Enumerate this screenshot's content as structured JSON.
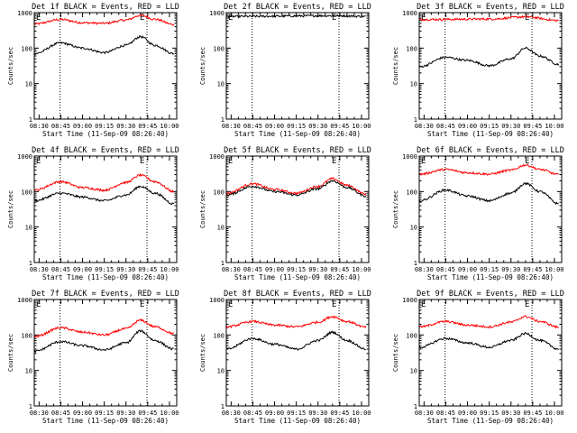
{
  "chart_data": [
    {
      "type": "line",
      "title": "Det 1f BLACK = Events, RED = LLD",
      "xlabel": "Start Time (11-Sep-09 08:26:40)",
      "ylabel": "Counts/sec",
      "ylim": [
        1,
        1000
      ],
      "yscale": "log",
      "x_ticks": [
        "08:30",
        "08:45",
        "09:00",
        "09:15",
        "09:30",
        "09:45",
        "10:00"
      ],
      "y_ticks": [
        "1",
        "10",
        "100",
        "1000"
      ],
      "markers": [
        "E",
        "E"
      ],
      "series": [
        {
          "color": "#000000",
          "points": [
            [
              "08:27",
              70
            ],
            [
              "08:45",
              140
            ],
            [
              "09:00",
              100
            ],
            [
              "09:15",
              75
            ],
            [
              "09:30",
              120
            ],
            [
              "09:40",
              210
            ],
            [
              "09:50",
              120
            ],
            [
              "10:03",
              70
            ]
          ]
        },
        {
          "color": "#ff0000",
          "points": [
            [
              "08:27",
              480
            ],
            [
              "08:45",
              640
            ],
            [
              "09:00",
              520
            ],
            [
              "09:15",
              500
            ],
            [
              "09:30",
              620
            ],
            [
              "09:40",
              840
            ],
            [
              "09:50",
              650
            ],
            [
              "10:03",
              460
            ]
          ]
        }
      ]
    },
    {
      "type": "line",
      "title": "Det 2f BLACK = Events, RED = LLD",
      "xlabel": "Start Time (11-Sep-09 08:26:40)",
      "ylabel": "Counts/sec",
      "ylim": [
        1,
        1000
      ],
      "yscale": "log",
      "x_ticks": [
        "08:30",
        "08:45",
        "09:00",
        "09:15",
        "09:30",
        "09:45",
        "10:00"
      ],
      "y_ticks": [
        "1",
        "10",
        "100",
        "1000"
      ],
      "markers": [
        "E",
        "E"
      ],
      "series": [
        {
          "color": "#000000",
          "points": [
            [
              "08:27",
              780
            ],
            [
              "09:45",
              820
            ],
            [
              "10:03",
              780
            ]
          ]
        },
        {
          "color": "#ff0000",
          "points": [
            [
              "08:27",
              1100
            ],
            [
              "09:45",
              1150
            ],
            [
              "10:03",
              1100
            ]
          ]
        }
      ]
    },
    {
      "type": "line",
      "title": "Det 3f BLACK = Events, RED = LLD",
      "xlabel": "Start Time (11-Sep-09 08:26:40)",
      "ylabel": "Counts/sec",
      "ylim": [
        1,
        1000
      ],
      "yscale": "log",
      "x_ticks": [
        "08:30",
        "08:45",
        "09:00",
        "09:15",
        "09:30",
        "09:45",
        "10:00"
      ],
      "y_ticks": [
        "1",
        "10",
        "100",
        "1000"
      ],
      "markers": [
        "E",
        "E"
      ],
      "series": [
        {
          "color": "#000000",
          "points": [
            [
              "08:27",
              30
            ],
            [
              "08:45",
              55
            ],
            [
              "09:00",
              45
            ],
            [
              "09:15",
              32
            ],
            [
              "09:30",
              50
            ],
            [
              "09:40",
              100
            ],
            [
              "09:50",
              60
            ],
            [
              "10:03",
              35
            ]
          ]
        },
        {
          "color": "#ff0000",
          "points": [
            [
              "08:27",
              640
            ],
            [
              "09:15",
              660
            ],
            [
              "09:40",
              760
            ],
            [
              "10:03",
              600
            ]
          ]
        }
      ]
    },
    {
      "type": "line",
      "title": "Det 4f BLACK = Events, RED = LLD",
      "xlabel": "Start Time (11-Sep-09 08:26:40)",
      "ylabel": "Counts/sec",
      "ylim": [
        1,
        1000
      ],
      "yscale": "log",
      "x_ticks": [
        "08:30",
        "08:45",
        "09:00",
        "09:15",
        "09:30",
        "09:45",
        "10:00"
      ],
      "y_ticks": [
        "1",
        "10",
        "100",
        "1000"
      ],
      "markers": [
        "E",
        "E"
      ],
      "series": [
        {
          "color": "#000000",
          "points": [
            [
              "08:27",
              55
            ],
            [
              "08:45",
              90
            ],
            [
              "09:00",
              70
            ],
            [
              "09:15",
              55
            ],
            [
              "09:30",
              80
            ],
            [
              "09:40",
              140
            ],
            [
              "09:50",
              90
            ],
            [
              "10:03",
              45
            ]
          ]
        },
        {
          "color": "#ff0000",
          "points": [
            [
              "08:27",
              110
            ],
            [
              "08:45",
              190
            ],
            [
              "09:00",
              130
            ],
            [
              "09:15",
              110
            ],
            [
              "09:30",
              180
            ],
            [
              "09:40",
              290
            ],
            [
              "09:50",
              190
            ],
            [
              "10:03",
              100
            ]
          ]
        }
      ]
    },
    {
      "type": "line",
      "title": "Det 5f BLACK = Events, RED = LLD",
      "xlabel": "Start Time (11-Sep-09 08:26:40)",
      "ylabel": "Counts/sec",
      "ylim": [
        1,
        1000
      ],
      "yscale": "log",
      "x_ticks": [
        "08:30",
        "08:45",
        "09:00",
        "09:15",
        "09:30",
        "09:45",
        "10:00"
      ],
      "y_ticks": [
        "1",
        "10",
        "100",
        "1000"
      ],
      "markers": [
        "E",
        "E"
      ],
      "series": [
        {
          "color": "#000000",
          "points": [
            [
              "08:27",
              80
            ],
            [
              "08:45",
              140
            ],
            [
              "09:00",
              100
            ],
            [
              "09:15",
              80
            ],
            [
              "09:30",
              120
            ],
            [
              "09:40",
              200
            ],
            [
              "09:50",
              130
            ],
            [
              "10:03",
              75
            ]
          ]
        },
        {
          "color": "#ff0000",
          "points": [
            [
              "08:27",
              90
            ],
            [
              "08:45",
              165
            ],
            [
              "09:00",
              115
            ],
            [
              "09:15",
              90
            ],
            [
              "09:30",
              140
            ],
            [
              "09:40",
              230
            ],
            [
              "09:50",
              150
            ],
            [
              "10:03",
              85
            ]
          ]
        }
      ]
    },
    {
      "type": "line",
      "title": "Det 6f BLACK = Events, RED = LLD",
      "xlabel": "Start Time (11-Sep-09 08:26:40)",
      "ylabel": "Counts/sec",
      "ylim": [
        1,
        1000
      ],
      "yscale": "log",
      "x_ticks": [
        "08:30",
        "08:45",
        "09:00",
        "09:15",
        "09:30",
        "09:45",
        "10:00"
      ],
      "y_ticks": [
        "1",
        "10",
        "100",
        "1000"
      ],
      "markers": [
        "E",
        "E"
      ],
      "series": [
        {
          "color": "#000000",
          "points": [
            [
              "08:27",
              55
            ],
            [
              "08:45",
              110
            ],
            [
              "09:00",
              75
            ],
            [
              "09:15",
              55
            ],
            [
              "09:30",
              90
            ],
            [
              "09:40",
              170
            ],
            [
              "09:50",
              100
            ],
            [
              "10:03",
              45
            ]
          ]
        },
        {
          "color": "#ff0000",
          "points": [
            [
              "08:27",
              310
            ],
            [
              "08:45",
              420
            ],
            [
              "09:00",
              340
            ],
            [
              "09:15",
              310
            ],
            [
              "09:30",
              400
            ],
            [
              "09:40",
              560
            ],
            [
              "09:50",
              420
            ],
            [
              "10:03",
              300
            ]
          ]
        }
      ]
    },
    {
      "type": "line",
      "title": "Det 7f BLACK = Events, RED = LLD",
      "xlabel": "Start Time (11-Sep-09 08:26:40)",
      "ylabel": "Counts/sec",
      "ylim": [
        1,
        1000
      ],
      "yscale": "log",
      "x_ticks": [
        "08:30",
        "08:45",
        "09:00",
        "09:15",
        "09:30",
        "09:45",
        "10:00"
      ],
      "y_ticks": [
        "1",
        "10",
        "100",
        "1000"
      ],
      "markers": [
        "E",
        "E"
      ],
      "series": [
        {
          "color": "#000000",
          "points": [
            [
              "08:27",
              35
            ],
            [
              "08:45",
              65
            ],
            [
              "09:00",
              50
            ],
            [
              "09:15",
              38
            ],
            [
              "09:30",
              60
            ],
            [
              "09:40",
              130
            ],
            [
              "09:50",
              70
            ],
            [
              "10:03",
              40
            ]
          ]
        },
        {
          "color": "#ff0000",
          "points": [
            [
              "08:27",
              90
            ],
            [
              "08:45",
              160
            ],
            [
              "09:00",
              120
            ],
            [
              "09:15",
              100
            ],
            [
              "09:30",
              150
            ],
            [
              "09:40",
              260
            ],
            [
              "09:50",
              170
            ],
            [
              "10:03",
              110
            ]
          ]
        }
      ]
    },
    {
      "type": "line",
      "title": "Det 8f BLACK = Events, RED = LLD",
      "xlabel": "Start Time (11-Sep-09 08:26:40)",
      "ylabel": "Counts/sec",
      "ylim": [
        1,
        1000
      ],
      "yscale": "log",
      "x_ticks": [
        "08:30",
        "08:45",
        "09:00",
        "09:15",
        "09:30",
        "09:45",
        "10:00"
      ],
      "y_ticks": [
        "1",
        "10",
        "100",
        "1000"
      ],
      "markers": [
        "E",
        "E"
      ],
      "series": [
        {
          "color": "#000000",
          "points": [
            [
              "08:27",
              40
            ],
            [
              "08:45",
              80
            ],
            [
              "09:00",
              55
            ],
            [
              "09:15",
              40
            ],
            [
              "09:30",
              70
            ],
            [
              "09:40",
              120
            ],
            [
              "09:50",
              70
            ],
            [
              "10:03",
              40
            ]
          ]
        },
        {
          "color": "#ff0000",
          "points": [
            [
              "08:27",
              170
            ],
            [
              "08:45",
              240
            ],
            [
              "09:00",
              190
            ],
            [
              "09:15",
              170
            ],
            [
              "09:30",
              230
            ],
            [
              "09:40",
              330
            ],
            [
              "09:50",
              240
            ],
            [
              "10:03",
              165
            ]
          ]
        }
      ]
    },
    {
      "type": "line",
      "title": "Det 9f BLACK = Events, RED = LLD",
      "xlabel": "Start Time (11-Sep-09 08:26:40)",
      "ylabel": "Counts/sec",
      "ylim": [
        1,
        1000
      ],
      "yscale": "log",
      "x_ticks": [
        "08:30",
        "08:45",
        "09:00",
        "09:15",
        "09:30",
        "09:45",
        "10:00"
      ],
      "y_ticks": [
        "1",
        "10",
        "100",
        "1000"
      ],
      "markers": [
        "E",
        "E"
      ],
      "series": [
        {
          "color": "#000000",
          "points": [
            [
              "08:27",
              45
            ],
            [
              "08:45",
              80
            ],
            [
              "09:00",
              60
            ],
            [
              "09:15",
              45
            ],
            [
              "09:30",
              70
            ],
            [
              "09:40",
              110
            ],
            [
              "09:50",
              70
            ],
            [
              "10:03",
              40
            ]
          ]
        },
        {
          "color": "#ff0000",
          "points": [
            [
              "08:27",
              170
            ],
            [
              "08:45",
              240
            ],
            [
              "09:00",
              190
            ],
            [
              "09:15",
              170
            ],
            [
              "09:30",
              230
            ],
            [
              "09:40",
              330
            ],
            [
              "09:50",
              240
            ],
            [
              "10:03",
              165
            ]
          ]
        }
      ]
    }
  ]
}
